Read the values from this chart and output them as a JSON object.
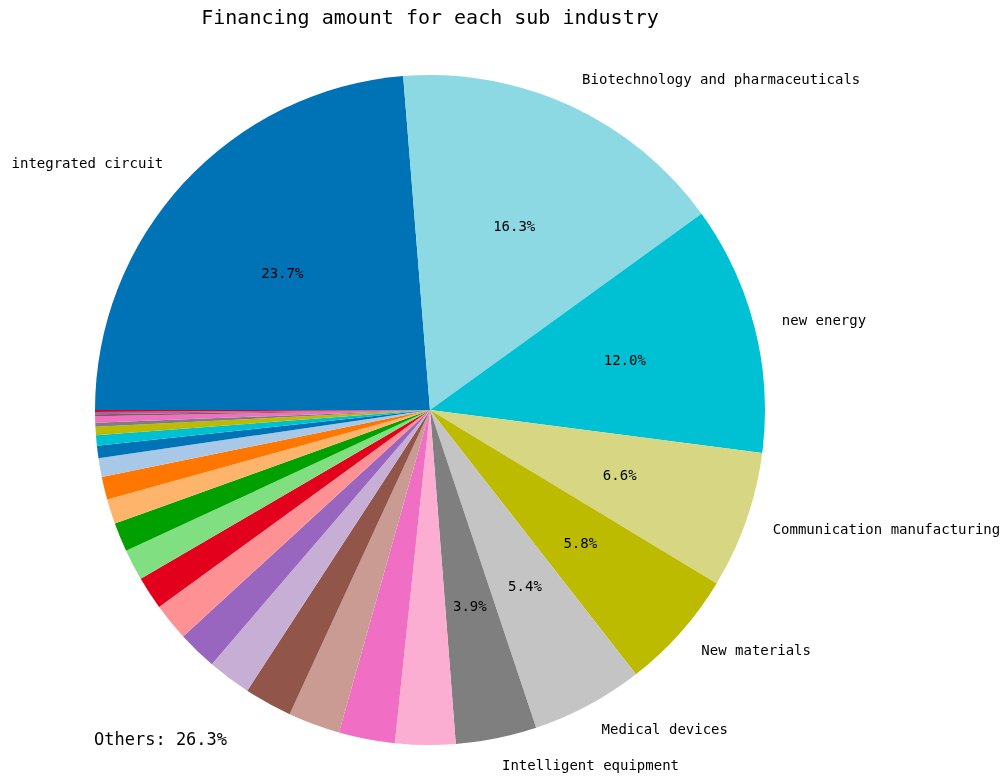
{
  "chart_data": {
    "type": "pie",
    "title": "Financing amount for each sub industry",
    "categories": [
      "integrated circuit",
      "Biotechnology and pharmaceuticals",
      "new energy",
      "Communication manufacturing",
      "New materials",
      "Medical devices",
      "Intelligent equipment",
      null,
      null,
      null,
      null,
      null,
      null,
      null,
      null,
      null,
      null,
      null,
      null,
      null,
      null,
      null,
      null,
      null,
      null,
      null,
      null,
      null
    ],
    "values": [
      23.7,
      16.3,
      12.0,
      6.6,
      5.8,
      5.4,
      3.9,
      2.9,
      2.7,
      2.5,
      2.3,
      2.1,
      1.9,
      1.8,
      1.6,
      1.5,
      1.4,
      1.2,
      1.1,
      0.9,
      0.6,
      0.5,
      0.4,
      0.2,
      0.3,
      0.1,
      0.1,
      0.1
    ],
    "value_labels": [
      "23.7%",
      "16.3%",
      "12.0%",
      "6.6%",
      "5.8%",
      "5.4%",
      "3.9%",
      null,
      null,
      null,
      null,
      null,
      null,
      null,
      null,
      null,
      null,
      null,
      null,
      null,
      null,
      null,
      null,
      null,
      null,
      null,
      null,
      null
    ],
    "colors": [
      "#0072b6",
      "#8cd9e4",
      "#00c0d4",
      "#d6d683",
      "#bcbb00",
      "#c4c4c4",
      "#7f7f7f",
      "#fbaed2",
      "#f06ec3",
      "#c99b92",
      "#91554a",
      "#c6aed5",
      "#9966bf",
      "#fe9193",
      "#e3001d",
      "#80df80",
      "#00a000",
      "#ffb46c",
      "#ff7700",
      "#a8c8e8",
      "#0072b6",
      "#00c0d4",
      "#bcbb00",
      "#7f7f7f",
      "#f06ec3",
      "#91554a",
      "#9966bf",
      "#e3001d"
    ],
    "annotations": [
      "Others: 26.3%"
    ]
  }
}
